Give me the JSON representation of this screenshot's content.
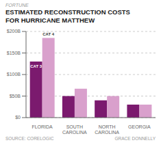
{
  "chart_data": {
    "type": "bar",
    "header": "FORTUNE",
    "title": "ESTIMATED RECONSTRUCTION COSTS\nFOR HURRICANE MATTHEW",
    "categories": [
      "FLORIDA",
      "SOUTH\nCAROLINA",
      "NORTH\nCAROLINA",
      "GEORGIA"
    ],
    "series": [
      {
        "name": "CAT 3",
        "color": "#7b1a6e",
        "values": [
          130,
          50,
          40,
          30
        ]
      },
      {
        "name": "CAT 4",
        "color": "#d9a0cc",
        "values": [
          185,
          67,
          50,
          30
        ]
      }
    ],
    "ylim": [
      0,
      200
    ],
    "yticks": [
      {
        "value": 0,
        "label": "$0"
      },
      {
        "value": 50,
        "label": "$50B"
      },
      {
        "value": 100,
        "label": "$100B"
      },
      {
        "value": 150,
        "label": "$150B"
      },
      {
        "value": 200,
        "label": "$200B"
      }
    ],
    "grid": true,
    "source": "SOURCE: CORELOGIC",
    "credit": "GRACE DONNELLY"
  }
}
